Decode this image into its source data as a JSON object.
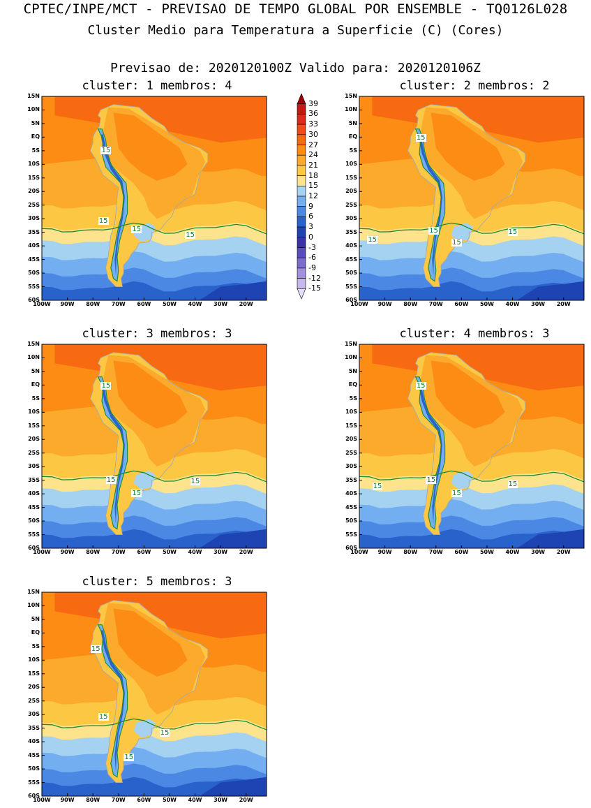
{
  "title": {
    "line1": "CPTEC/INPE/MCT - PREVISAO DE TEMPO GLOBAL POR ENSEMBLE - TQ0126L028",
    "line2": "Cluster Medio para Temperatura a Superficie (C) (Cores)",
    "line3": "Previsao de: 2020120100Z    Valido para: 2020120106Z"
  },
  "axes": {
    "lat_labels": [
      "15N",
      "10N",
      "5N",
      "EQ",
      "5S",
      "10S",
      "15S",
      "20S",
      "25S",
      "30S",
      "35S",
      "40S",
      "45S",
      "50S",
      "55S",
      "60S"
    ],
    "lon_labels": [
      "100W",
      "90W",
      "80W",
      "70W",
      "60W",
      "50W",
      "40W",
      "30W",
      "20W"
    ]
  },
  "legend": {
    "levels": [
      "39",
      "36",
      "33",
      "30",
      "27",
      "24",
      "21",
      "18",
      "15",
      "12",
      "9",
      "6",
      "3",
      "0",
      "-3",
      "-6",
      "-9",
      "-12",
      "-15"
    ],
    "colors": [
      "#a00000",
      "#c11a14",
      "#dc2a1c",
      "#ef4a18",
      "#f86a12",
      "#fc8c14",
      "#fbaa2c",
      "#fcc844",
      "#fde48c",
      "#a6d2f2",
      "#72aef0",
      "#4a88e4",
      "#2a62cc",
      "#1e44b4",
      "#3c32a8",
      "#5a4cbc",
      "#7c6cd0",
      "#a090de",
      "#c6b8ec",
      "#e6ddf7"
    ]
  },
  "panels": [
    {
      "title": "cluster: 1   membros: 4",
      "contour_labels": [
        "15",
        "15",
        "15",
        "15"
      ]
    },
    {
      "title": "cluster: 2   membros: 2",
      "contour_labels": [
        "15",
        "15",
        "15",
        "15",
        "15"
      ]
    },
    {
      "title": "cluster: 3   membros: 3",
      "contour_labels": [
        "15",
        "15",
        "15",
        "15"
      ]
    },
    {
      "title": "cluster: 4   membros: 3",
      "contour_labels": [
        "15",
        "15",
        "15",
        "15",
        "15"
      ]
    },
    {
      "title": "cluster: 5   membros: 3",
      "contour_labels": [
        "15",
        "15",
        "15",
        "15"
      ]
    }
  ]
}
